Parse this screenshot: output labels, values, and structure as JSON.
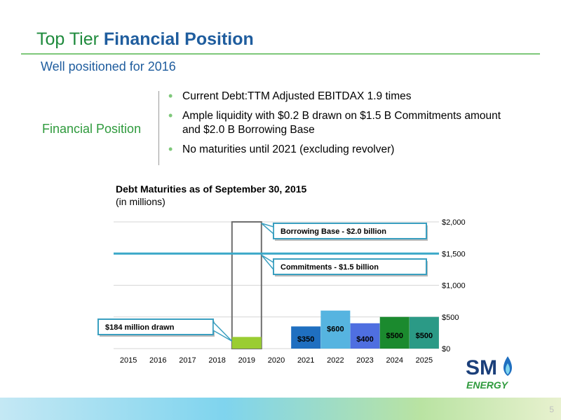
{
  "header": {
    "title_plain": "Top Tier ",
    "title_bold": "Financial Position",
    "subtitle": "Well positioned for 2016"
  },
  "section": {
    "label": "Financial Position",
    "bullets": [
      "Current Debt:TTM Adjusted EBITDAX 1.9 times",
      "Ample liquidity with $0.2 B drawn on $1.5 B Commitments amount and $2.0 B Borrowing Base",
      "No maturities until 2021 (excluding revolver)"
    ]
  },
  "chart_data": {
    "type": "bar",
    "title": "Debt Maturities as of September 30, 2015",
    "subtitle": "(in millions)",
    "categories": [
      "2015",
      "2016",
      "2017",
      "2018",
      "2019",
      "2020",
      "2021",
      "2022",
      "2023",
      "2024",
      "2025"
    ],
    "values": [
      0,
      0,
      0,
      0,
      184,
      0,
      350,
      600,
      400,
      500,
      500
    ],
    "data_labels": [
      "",
      "",
      "",
      "",
      "",
      "",
      "$350",
      "$600",
      "$400",
      "$500",
      "$500"
    ],
    "bar_colors": [
      "",
      "",
      "",
      "",
      "#9acd32",
      "",
      "#1f6fc0",
      "#56b4e0",
      "#4f6fe0",
      "#1b8a2e",
      "#2b9a86"
    ],
    "ylim": [
      0,
      2000
    ],
    "y_ticks": [
      0,
      500,
      1000,
      1500,
      2000
    ],
    "y_tick_labels": [
      "$0",
      "$500",
      "$1,000",
      "$1,500",
      "$2,000"
    ],
    "y_axis_side": "right",
    "grid": true,
    "reference_lines": [
      {
        "label": "Commitments - $1.5 billion",
        "value": 1500,
        "color": "#3aa8c8"
      }
    ],
    "revolver": {
      "category": "2019",
      "borrowing_base": 2000,
      "drawn": 184
    },
    "callouts": [
      {
        "text": "Borrowing Base - $2.0 billion",
        "target": 2000
      },
      {
        "text": "Commitments - $1.5 billion",
        "target": 1500
      },
      {
        "text": "$184 million drawn",
        "target": 184
      }
    ]
  },
  "footer": {
    "page_number": "5"
  },
  "logo": {
    "primary": "SM",
    "secondary": "ENERGY"
  }
}
